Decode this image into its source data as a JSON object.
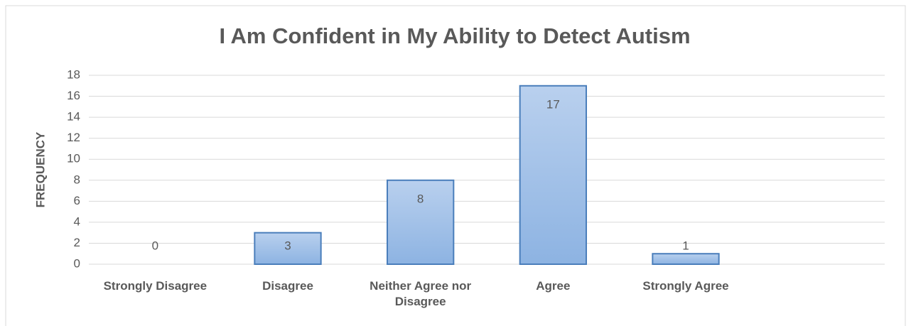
{
  "chart_data": {
    "type": "bar",
    "title": "I Am Confident in My Ability to Detect Autism",
    "y_label": "FREQUENCY",
    "categories": [
      "Strongly Disagree",
      "Disagree",
      "Neither Agree nor Disagree",
      "Agree",
      "Strongly Agree",
      null
    ],
    "values": [
      0,
      3,
      8,
      17,
      1,
      null
    ],
    "color": "#a3c1e8",
    "ylim": [
      0,
      18
    ],
    "yticks": [
      0,
      2,
      4,
      6,
      8,
      10,
      12,
      14,
      16,
      18
    ],
    "grid": true
  }
}
